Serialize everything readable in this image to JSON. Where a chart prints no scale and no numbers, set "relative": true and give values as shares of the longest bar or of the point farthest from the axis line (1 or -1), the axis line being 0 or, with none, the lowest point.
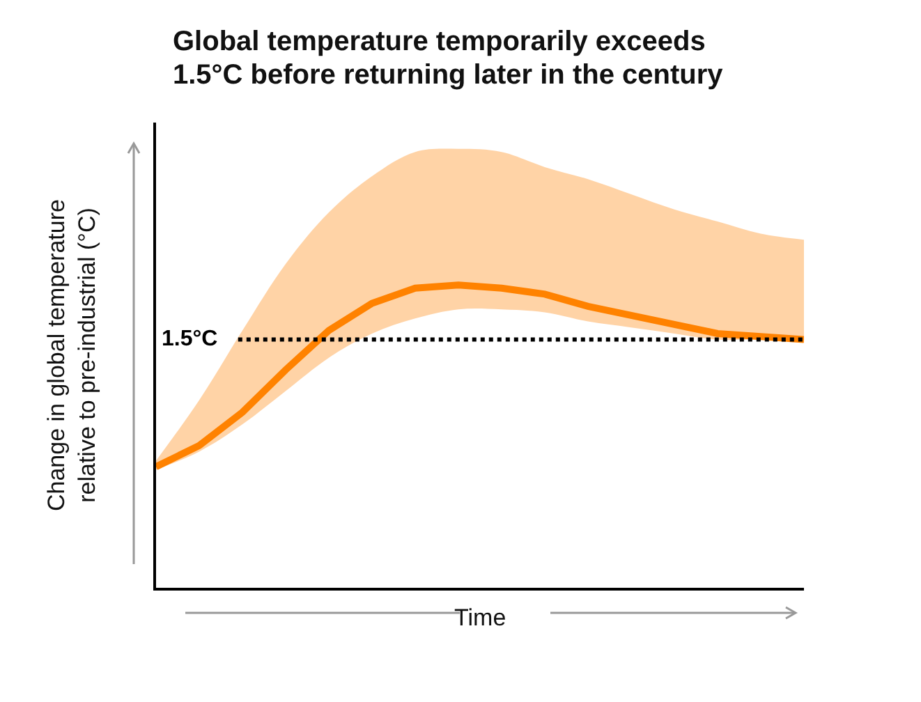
{
  "chart_data": {
    "type": "line",
    "title": "Global temperature temporarily exceeds\n1.5°C before returning later in the century",
    "xlabel": "Time",
    "ylabel": "Change in global temperature\nrelative to pre-industrial (°C)",
    "relative": true,
    "grid": false,
    "marker": "none",
    "line_style": "solid",
    "categories": [
      null,
      null,
      null,
      null,
      null,
      null,
      null,
      null,
      null,
      null,
      null,
      null,
      null,
      null,
      null,
      null
    ],
    "series": [
      {
        "color": "#ff8200",
        "values": [
          0.4,
          0.47,
          0.58,
          0.72,
          0.85,
          0.94,
          0.99,
          1,
          0.99,
          0.97,
          0.93,
          0.9,
          0.87,
          0.84,
          0.83,
          0.82
        ],
        "lower": [
          0.39,
          0.45,
          0.54,
          0.65,
          0.76,
          0.84,
          0.89,
          0.92,
          0.92,
          0.91,
          0.88,
          0.86,
          0.84,
          0.82,
          0.82,
          0.81
        ],
        "upper": [
          0.42,
          0.62,
          0.85,
          1.07,
          1.24,
          1.36,
          1.44,
          1.45,
          1.44,
          1.39,
          1.35,
          1.3,
          1.25,
          1.21,
          1.17,
          1.15
        ]
      }
    ],
    "ref_lines": [
      {
        "axis": "y",
        "value": 0.82,
        "label": "1.5°C",
        "color": "#000000",
        "line_style": "dotted"
      }
    ]
  }
}
